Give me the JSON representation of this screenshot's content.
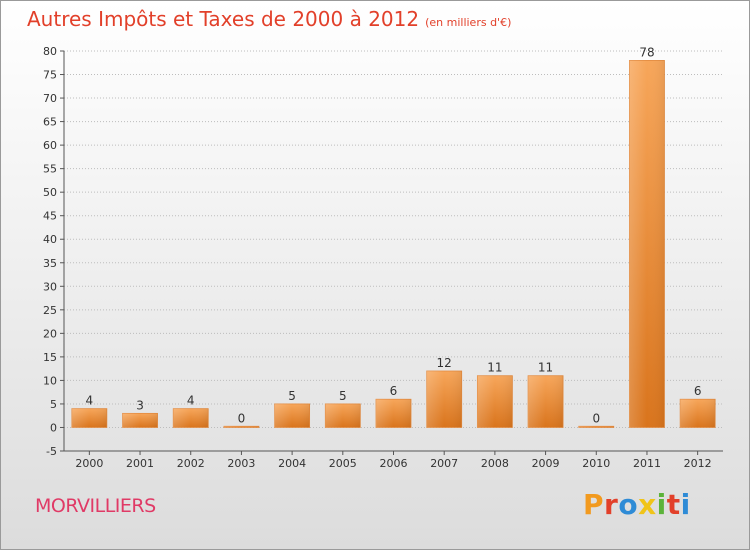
{
  "header": {
    "title": "Autres Impôts et Taxes de 2000 à 2012",
    "subtitle": "(en milliers d'€)"
  },
  "footer": {
    "commune": "MORVILLIERS",
    "logo_text": "Proxiti",
    "logo_colors": [
      "#f29a1f",
      "#e2402a",
      "#2e8bd6",
      "#f0c419",
      "#5bb33a",
      "#e2402a",
      "#2e8bd6"
    ]
  },
  "colors": {
    "title": "#e2402a",
    "commune": "#e03a66",
    "bar_light": "#f7a65a",
    "bar_dark": "#d9741c",
    "grid": "#bdbdbd"
  },
  "chart_data": {
    "type": "bar",
    "title": "Autres Impôts et Taxes de 2000 à 2012",
    "subtitle": "(en milliers d'€)",
    "categories": [
      "2000",
      "2001",
      "2002",
      "2003",
      "2004",
      "2005",
      "2006",
      "2007",
      "2008",
      "2009",
      "2010",
      "2011",
      "2012"
    ],
    "values": [
      4,
      3,
      4,
      0,
      5,
      5,
      6,
      12,
      11,
      11,
      0,
      78,
      6
    ],
    "data_labels": [
      "4",
      "3",
      "4",
      "0",
      "5",
      "5",
      "6",
      "12",
      "11",
      "11",
      "0",
      "78",
      "6"
    ],
    "xlabel": "",
    "ylabel": "",
    "ylim": [
      -5,
      80
    ],
    "yticks": [
      -5,
      0,
      5,
      10,
      15,
      20,
      25,
      30,
      35,
      40,
      45,
      50,
      55,
      60,
      65,
      70,
      75,
      80
    ],
    "grid": "horizontal",
    "legend": "none"
  }
}
